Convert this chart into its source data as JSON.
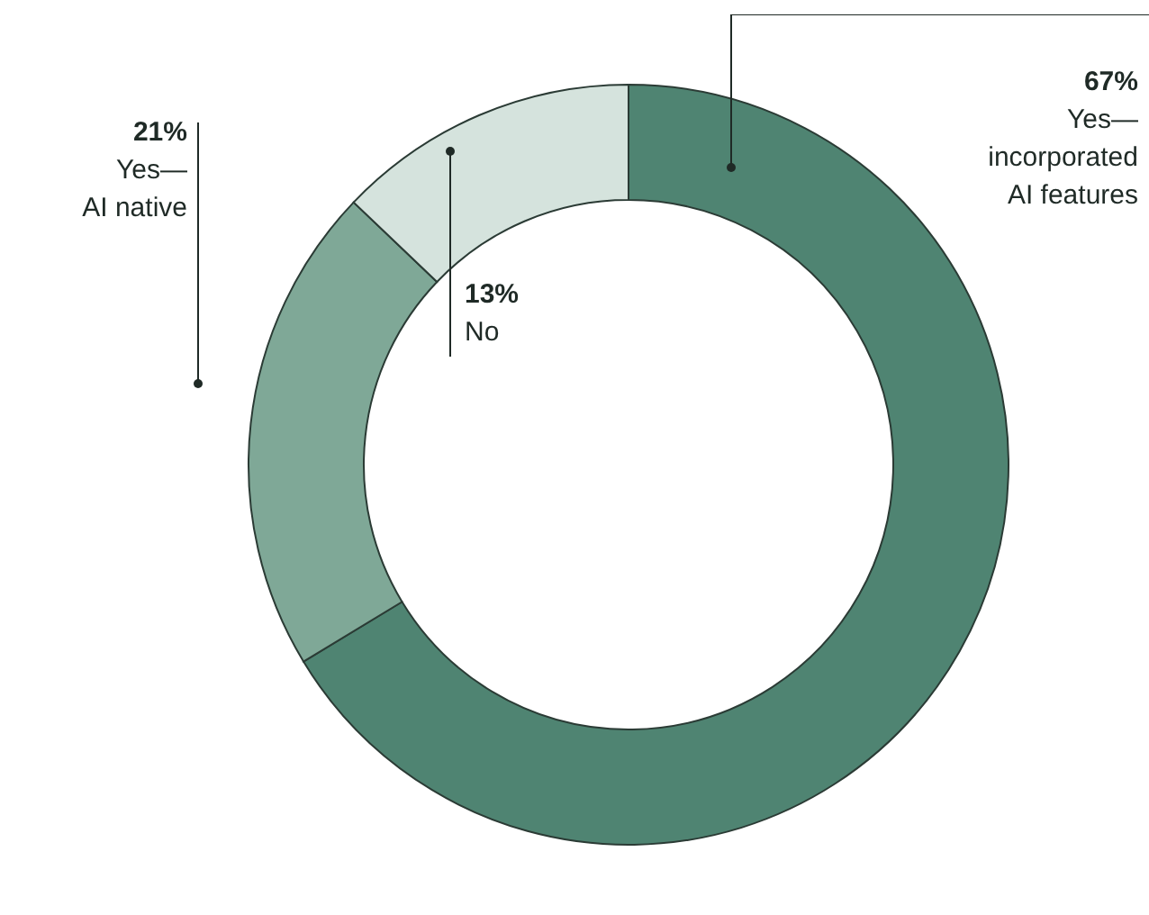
{
  "chart_data": {
    "type": "donut",
    "categories": [
      "Yes—incorporated AI features",
      "Yes—AI native",
      "No"
    ],
    "values": [
      67,
      21,
      13
    ],
    "value_labels": [
      "67%",
      "21%",
      "13%"
    ],
    "colors": [
      "#4f8472",
      "#7fa897",
      "#d5e3dd"
    ]
  }
}
